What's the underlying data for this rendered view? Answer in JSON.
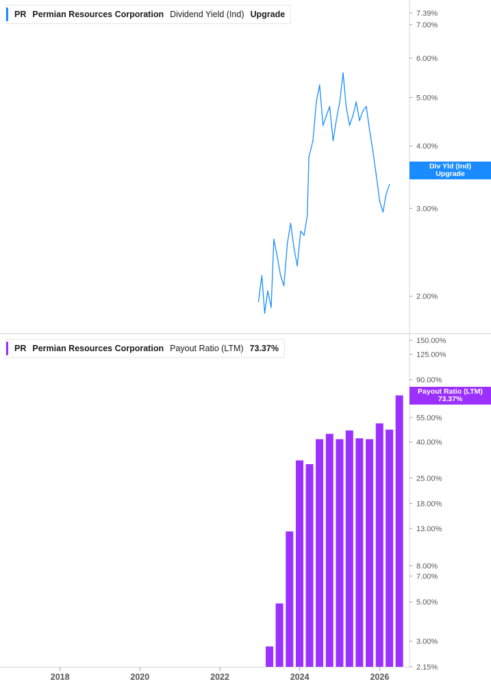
{
  "chart_data": [
    {
      "type": "line",
      "ticker": "PR",
      "company": "Permian Resources Corporation",
      "metric": "Dividend Yield (Ind)",
      "current_value": "Upgrade",
      "series_color": "#1a8cff",
      "y_scale": "log",
      "ylim": [
        1.75,
        7.6
      ],
      "y_ticks": [
        {
          "value": 7.39,
          "label": "7.39%"
        },
        {
          "value": 7.0,
          "label": "7.00%"
        },
        {
          "value": 6.0,
          "label": "6.00%"
        },
        {
          "value": 5.0,
          "label": "5.00%"
        },
        {
          "value": 4.0,
          "label": "4.00%"
        },
        {
          "value": 3.0,
          "label": "3.00%"
        },
        {
          "value": 2.0,
          "label": "2.00%"
        }
      ],
      "end_label": {
        "line1": "Div Yld (Ind)",
        "line2": "Upgrade"
      },
      "x": [
        "2022-12-20",
        "2023-01-20",
        "2023-02-15",
        "2023-03-15",
        "2023-04-15",
        "2023-05-10",
        "2023-06-10",
        "2023-07-10",
        "2023-08-10",
        "2023-09-10",
        "2023-10-10",
        "2023-11-10",
        "2023-12-10",
        "2024-01-10",
        "2024-02-10",
        "2024-03-10",
        "2024-03-25",
        "2024-05-01",
        "2024-06-01",
        "2024-07-01",
        "2024-08-01",
        "2024-09-01",
        "2024-10-01",
        "2024-11-01",
        "2024-12-01",
        "2025-01-01",
        "2025-02-01",
        "2025-03-01",
        "2025-04-01",
        "2025-05-01",
        "2025-06-01",
        "2025-07-01",
        "2025-08-01",
        "2025-09-01",
        "2025-10-01",
        "2025-11-01",
        "2025-12-01",
        "2026-01-01",
        "2026-02-01",
        "2026-03-01",
        "2026-04-01"
      ],
      "values": [
        1.95,
        2.2,
        1.85,
        2.05,
        1.9,
        2.6,
        2.4,
        2.2,
        2.1,
        2.55,
        2.8,
        2.5,
        2.3,
        2.7,
        2.65,
        2.9,
        3.8,
        4.1,
        4.9,
        5.3,
        4.4,
        4.6,
        4.8,
        4.1,
        4.5,
        4.9,
        5.6,
        4.8,
        4.4,
        4.6,
        4.9,
        4.5,
        4.7,
        4.8,
        4.3,
        3.9,
        3.5,
        3.1,
        2.95,
        3.2,
        3.35
      ]
    },
    {
      "type": "bar",
      "ticker": "PR",
      "company": "Permian Resources Corporation",
      "metric": "Payout Ratio (LTM)",
      "current_value": "73.37%",
      "series_color": "#9b30ff",
      "y_scale": "log",
      "ylim": [
        2.15,
        160
      ],
      "y_ticks": [
        {
          "value": 150,
          "label": "150.00%"
        },
        {
          "value": 125,
          "label": "125.00%"
        },
        {
          "value": 90,
          "label": "90.00%"
        },
        {
          "value": 55,
          "label": "55.00%"
        },
        {
          "value": 40,
          "label": "40.00%"
        },
        {
          "value": 25,
          "label": "25.00%"
        },
        {
          "value": 18,
          "label": "18.00%"
        },
        {
          "value": 13,
          "label": "13.00%"
        },
        {
          "value": 8,
          "label": "8.00%"
        },
        {
          "value": 7,
          "label": "7.00%"
        },
        {
          "value": 5,
          "label": "5.00%"
        },
        {
          "value": 3,
          "label": "3.00%"
        },
        {
          "value": 2.15,
          "label": "2.15%"
        }
      ],
      "end_label": {
        "line1": "Payout Ratio (LTM)",
        "line2": "73.37%"
      },
      "x": [
        "2023-03-31",
        "2023-06-30",
        "2023-09-30",
        "2023-12-31",
        "2024-03-31",
        "2024-06-30",
        "2024-09-30",
        "2024-12-31",
        "2025-03-31",
        "2025-06-30",
        "2025-09-30",
        "2025-12-31",
        "2026-03-31",
        "2026-06-30"
      ],
      "values": [
        2.8,
        4.9,
        12.5,
        31.5,
        30.0,
        41.5,
        44.5,
        41.5,
        46.5,
        42.0,
        41.5,
        51.0,
        47.0,
        73.37
      ]
    }
  ],
  "x_axis": {
    "range": [
      "2016-07-01",
      "2026-10-01"
    ],
    "ticks": [
      {
        "date": "2018-01-01",
        "label": "2018"
      },
      {
        "date": "2020-01-01",
        "label": "2020"
      },
      {
        "date": "2022-01-01",
        "label": "2022"
      },
      {
        "date": "2024-01-01",
        "label": "2024"
      },
      {
        "date": "2026-01-01",
        "label": "2026"
      }
    ]
  }
}
